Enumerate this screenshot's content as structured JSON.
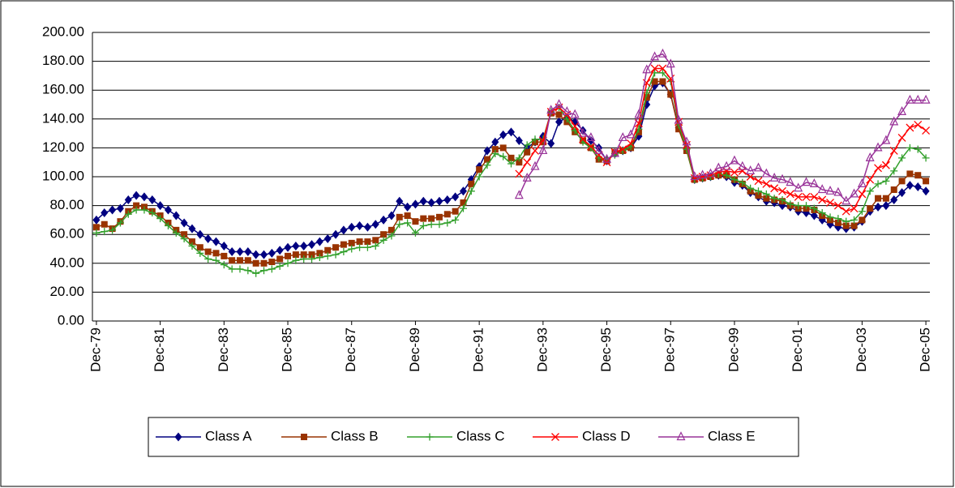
{
  "chart_data": {
    "type": "line",
    "categories": [
      "Dec-79",
      null,
      null,
      null,
      null,
      null,
      null,
      null,
      "Dec-81",
      null,
      null,
      null,
      null,
      null,
      null,
      null,
      "Dec-83",
      null,
      null,
      null,
      null,
      null,
      null,
      null,
      "Dec-85",
      null,
      null,
      null,
      null,
      null,
      null,
      null,
      "Dec-87",
      null,
      null,
      null,
      null,
      null,
      null,
      null,
      "Dec-89",
      null,
      null,
      null,
      null,
      null,
      null,
      null,
      "Dec-91",
      null,
      null,
      null,
      null,
      null,
      null,
      null,
      "Dec-93",
      null,
      null,
      null,
      null,
      null,
      null,
      null,
      "Dec-95",
      null,
      null,
      null,
      null,
      null,
      null,
      null,
      "Dec-97",
      null,
      null,
      null,
      null,
      null,
      null,
      null,
      "Dec-99",
      null,
      null,
      null,
      null,
      null,
      null,
      null,
      "Dec-01",
      null,
      null,
      null,
      null,
      null,
      null,
      null,
      "Dec-03",
      null,
      null,
      null,
      null,
      null,
      null,
      null,
      "Dec-05"
    ],
    "series": [
      {
        "name": "Class A",
        "color": "#000080",
        "marker": "diamond",
        "values": [
          70,
          75,
          77,
          78,
          84,
          87,
          86,
          84,
          80,
          77,
          73,
          68,
          64,
          60,
          57,
          55,
          52,
          48,
          48,
          48,
          46,
          46,
          47,
          49,
          51,
          52,
          52,
          53,
          55,
          57,
          60,
          63,
          65,
          66,
          65,
          67,
          70,
          73,
          83,
          79,
          81,
          83,
          82,
          83,
          84,
          86,
          90,
          98,
          107,
          118,
          124,
          129,
          131,
          125,
          120,
          124,
          128,
          123,
          138,
          141,
          138,
          132,
          125,
          120,
          111,
          116,
          118,
          120,
          128,
          150,
          163,
          165,
          157,
          134,
          120,
          98,
          99,
          100,
          101,
          100,
          96,
          94,
          89,
          86,
          83,
          82,
          80,
          79,
          76,
          75,
          73,
          70,
          67,
          65,
          64,
          65,
          69,
          76,
          79,
          80,
          84,
          89,
          94,
          93,
          90
        ]
      },
      {
        "name": "Class B",
        "color": "#993300",
        "marker": "square",
        "values": [
          65,
          67,
          64,
          69,
          76,
          80,
          79,
          76,
          73,
          68,
          63,
          60,
          55,
          51,
          48,
          47,
          45,
          42,
          42,
          42,
          40,
          40,
          41,
          43,
          45,
          46,
          46,
          46,
          47,
          49,
          51,
          53,
          54,
          55,
          55,
          56,
          60,
          63,
          72,
          73,
          69,
          71,
          71,
          72,
          74,
          76,
          82,
          95,
          105,
          112,
          119,
          120,
          113,
          110,
          117,
          124,
          124,
          144,
          143,
          138,
          131,
          125,
          120,
          112,
          111,
          117,
          118,
          120,
          131,
          155,
          166,
          166,
          157,
          133,
          118,
          98,
          99,
          100,
          101,
          101,
          98,
          95,
          90,
          87,
          85,
          84,
          83,
          80,
          78,
          78,
          77,
          73,
          70,
          68,
          66,
          66,
          70,
          78,
          85,
          85,
          91,
          97,
          102,
          101,
          97
        ]
      },
      {
        "name": "Class C",
        "color": "#33A02C",
        "marker": "plus",
        "values": [
          61,
          62,
          63,
          68,
          74,
          77,
          77,
          75,
          71,
          66,
          61,
          57,
          52,
          47,
          43,
          42,
          39,
          36,
          36,
          35,
          33,
          35,
          36,
          38,
          40,
          42,
          43,
          43,
          44,
          45,
          46,
          48,
          50,
          51,
          51,
          52,
          56,
          59,
          67,
          68,
          61,
          66,
          67,
          67,
          68,
          70,
          78,
          90,
          100,
          108,
          116,
          114,
          109,
          113,
          122,
          126,
          126,
          145,
          148,
          140,
          132,
          124,
          120,
          113,
          112,
          115,
          118,
          121,
          133,
          158,
          172,
          172,
          166,
          136,
          119,
          98,
          99,
          100,
          102,
          101,
          98,
          96,
          92,
          90,
          88,
          85,
          84,
          81,
          80,
          80,
          78,
          75,
          72,
          71,
          69,
          70,
          76,
          90,
          95,
          97,
          104,
          113,
          120,
          119,
          113
        ]
      },
      {
        "name": "Class D",
        "color": "#FF0000",
        "marker": "x",
        "values": [
          null,
          null,
          null,
          null,
          null,
          null,
          null,
          null,
          null,
          null,
          null,
          null,
          null,
          null,
          null,
          null,
          null,
          null,
          null,
          null,
          null,
          null,
          null,
          null,
          null,
          null,
          null,
          null,
          null,
          null,
          null,
          null,
          null,
          null,
          null,
          null,
          null,
          null,
          null,
          null,
          null,
          null,
          null,
          null,
          null,
          null,
          null,
          null,
          null,
          null,
          null,
          null,
          null,
          102,
          110,
          118,
          125,
          145,
          148,
          143,
          135,
          126,
          121,
          115,
          110,
          117,
          119,
          123,
          137,
          165,
          175,
          175,
          168,
          138,
          122,
          99,
          100,
          101,
          103,
          104,
          103,
          104,
          100,
          97,
          95,
          92,
          90,
          88,
          86,
          86,
          86,
          84,
          82,
          80,
          76,
          78,
          88,
          98,
          106,
          108,
          118,
          127,
          134,
          136,
          132
        ]
      },
      {
        "name": "Class E",
        "color": "#993399",
        "marker": "triangle",
        "values": [
          null,
          null,
          null,
          null,
          null,
          null,
          null,
          null,
          null,
          null,
          null,
          null,
          null,
          null,
          null,
          null,
          null,
          null,
          null,
          null,
          null,
          null,
          null,
          null,
          null,
          null,
          null,
          null,
          null,
          null,
          null,
          null,
          null,
          null,
          null,
          null,
          null,
          null,
          null,
          null,
          null,
          null,
          null,
          null,
          null,
          null,
          null,
          null,
          null,
          null,
          null,
          null,
          null,
          87,
          99,
          107,
          118,
          146,
          150,
          145,
          143,
          130,
          127,
          118,
          112,
          116,
          127,
          129,
          143,
          174,
          183,
          185,
          178,
          139,
          124,
          100,
          101,
          102,
          106,
          107,
          111,
          107,
          104,
          106,
          102,
          99,
          98,
          96,
          92,
          96,
          95,
          91,
          90,
          89,
          83,
          88,
          95,
          113,
          120,
          125,
          138,
          145,
          153,
          153,
          153
        ]
      }
    ],
    "ylim": [
      0,
      200
    ],
    "yticks": [
      {
        "value": 0,
        "label": "0.00"
      },
      {
        "value": 20,
        "label": "20.00"
      },
      {
        "value": 40,
        "label": "40.00"
      },
      {
        "value": 60,
        "label": "60.00"
      },
      {
        "value": 80,
        "label": "80.00"
      },
      {
        "value": 100,
        "label": "100.00"
      },
      {
        "value": 120,
        "label": "120.00"
      },
      {
        "value": 140,
        "label": "140.00"
      },
      {
        "value": 160,
        "label": "160.00"
      },
      {
        "value": 180,
        "label": "180.00"
      },
      {
        "value": 200,
        "label": "200.00"
      }
    ],
    "grid": true,
    "legend": "bottom"
  }
}
